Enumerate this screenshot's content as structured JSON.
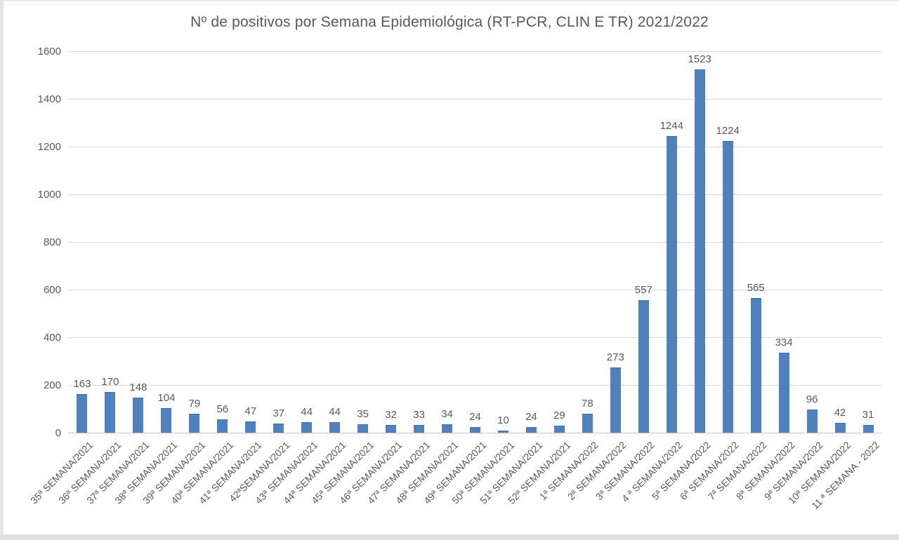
{
  "chart_data": {
    "type": "bar",
    "title": "Nº de positivos por Semana Epidemiológica (RT-PCR, CLIN E TR) 2021/2022",
    "categories": [
      "35ª SEMANA/2021",
      "36ª SEMANA/2021",
      "37ª SEMANA/2021",
      "38ª SEMANA/2021",
      "39ª SEMANA/2021",
      "40ª SEMANA/2021",
      "41ª SEMANA/2021",
      "42ªSEMANA/2021",
      "43ª SEMANA/2021",
      "44ª SEMANA/2021",
      "45ª SEMANA/2021",
      "46ª SEMANA/2021",
      "47ª SEMANA/2021",
      "48ª SEMANA/2021",
      "49ª SEMANA/2021",
      "50ª SEMANA/2021",
      "51ª SEMANA/2021",
      "52ª SEMANA/2021",
      "1ª SEMANA/2022",
      "2ª SEMANA/2022",
      "3ª SEMANA/2022",
      "4 ª SEMANA/2022",
      "5ª SEMANA/2022",
      "6ª SEMANA/2022",
      "7ª SEMANA/2022",
      "8ª SEMANA/2022",
      "9ª SEMANA/2022",
      "10ª SEMANA/2022",
      "11 ª SEMANA  - 2022"
    ],
    "values": [
      163,
      170,
      148,
      104,
      79,
      56,
      47,
      37,
      44,
      44,
      35,
      32,
      33,
      34,
      24,
      10,
      24,
      29,
      78,
      273,
      557,
      1244,
      1523,
      1224,
      565,
      334,
      96,
      42,
      31
    ],
    "data_labels_visible": true,
    "xlabel": "",
    "ylabel": "",
    "ylim": [
      0,
      1600
    ],
    "ytick_labels": [
      "0",
      "200",
      "400",
      "600",
      "800",
      "1000",
      "1200",
      "1400",
      "1600"
    ],
    "grid": true,
    "legend": false,
    "colors": {
      "bar": "#4E81BD",
      "bar_border": "#3C6DA5",
      "text": "#595959",
      "gridline": "#D9D9D9",
      "axis_line": "#C6C6C6"
    }
  }
}
